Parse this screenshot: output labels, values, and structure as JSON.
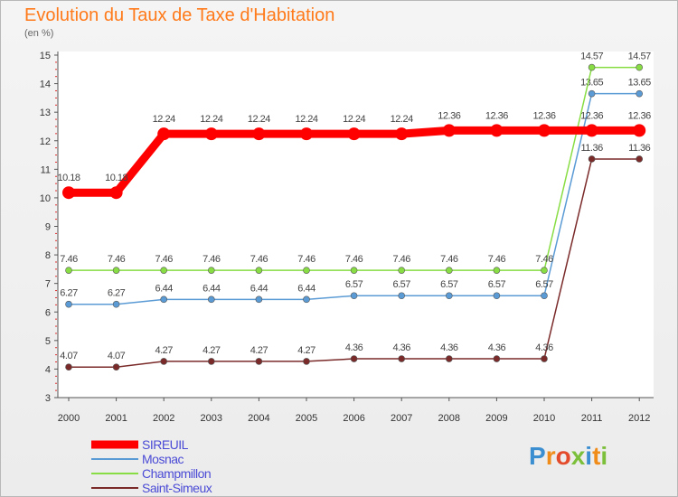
{
  "title": "Evolution du Taux de Taxe d'Habitation",
  "unit_label": "(en %)",
  "logo_text": "Proxiti",
  "chart_data": {
    "type": "line",
    "x": [
      "2000",
      "2001",
      "2002",
      "2003",
      "2004",
      "2005",
      "2006",
      "2007",
      "2008",
      "2009",
      "2010",
      "2011",
      "2012"
    ],
    "ylim": [
      3,
      15
    ],
    "yticks": [
      3,
      4,
      5,
      6,
      7,
      8,
      9,
      10,
      11,
      12,
      13,
      14,
      15
    ],
    "grid": false,
    "legend_placement": "bottom-left",
    "series": [
      {
        "name": "SIREUIL",
        "color": "#ff0000",
        "values": [
          10.18,
          10.18,
          12.24,
          12.24,
          12.24,
          12.24,
          12.24,
          12.24,
          12.36,
          12.36,
          12.36,
          12.36,
          12.36
        ],
        "labels": [
          "10.18",
          "10.18",
          "12.24",
          "12.24",
          "12.24",
          "12.24",
          "12.24",
          "12.24",
          "12.36",
          "12.36",
          "12.36",
          "12.36",
          "12.36"
        ]
      },
      {
        "name": "Mosnac",
        "color": "#5b9bd5",
        "values": [
          6.27,
          6.27,
          6.44,
          6.44,
          6.44,
          6.44,
          6.57,
          6.57,
          6.57,
          6.57,
          6.57,
          13.65,
          13.65
        ],
        "labels": [
          "6.27",
          "6.27",
          "6.44",
          "6.44",
          "6.44",
          "6.44",
          "6.57",
          "6.57",
          "6.57",
          "6.57",
          "6.57",
          "13.65",
          "13.65"
        ]
      },
      {
        "name": "Champmillon",
        "color": "#88dd44",
        "values": [
          7.46,
          7.46,
          7.46,
          7.46,
          7.46,
          7.46,
          7.46,
          7.46,
          7.46,
          7.46,
          7.46,
          14.57,
          14.57
        ],
        "labels": [
          "7.46",
          "7.46",
          "7.46",
          "7.46",
          "7.46",
          "7.46",
          "7.46",
          "7.46",
          "7.46",
          "7.46",
          "7.46",
          "14.57",
          "14.57"
        ]
      },
      {
        "name": "Saint-Simeux",
        "color": "#7b2a2a",
        "values": [
          4.07,
          4.07,
          4.27,
          4.27,
          4.27,
          4.27,
          4.36,
          4.36,
          4.36,
          4.36,
          4.36,
          11.36,
          11.36
        ],
        "labels": [
          "4.07",
          "4.07",
          "4.27",
          "4.27",
          "4.27",
          "4.27",
          "4.36",
          "4.36",
          "4.36",
          "4.36",
          "4.36",
          "11.36",
          "11.36"
        ]
      }
    ]
  }
}
